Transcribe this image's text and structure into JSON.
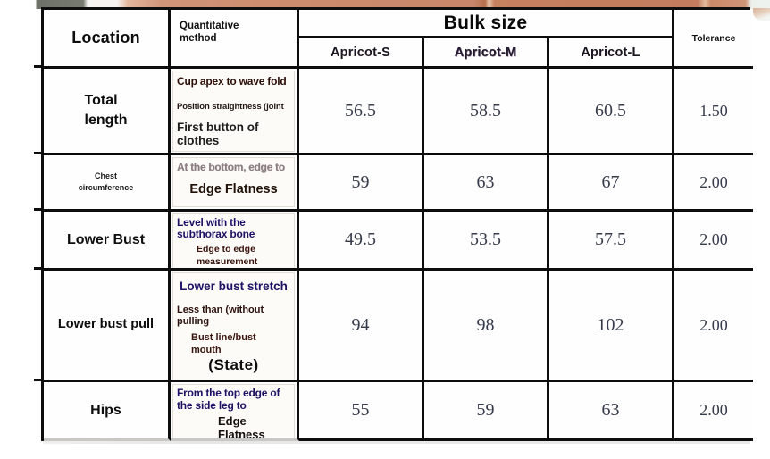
{
  "table": {
    "header": {
      "location": "Location",
      "method": "Quantitative method",
      "bulk_size": "Bulk size",
      "sizes": [
        "Apricot-S",
        "Apricot-M",
        "Apricot-L"
      ],
      "tolerance": "Tolerance"
    },
    "rows": [
      {
        "location_lines": [
          "Total",
          "length"
        ],
        "method_lines": [
          "Cup apex to wave fold",
          "Position straightness (joint",
          "First button of clothes"
        ],
        "values": [
          "56.5",
          "58.5",
          "60.5"
        ],
        "tolerance": "1.50"
      },
      {
        "location_lines": [
          "Chest",
          "circumference"
        ],
        "method_lines": [
          "At the bottom, edge to",
          "Edge Flatness"
        ],
        "values": [
          "59",
          "63",
          "67"
        ],
        "tolerance": "2.00"
      },
      {
        "location": "Lower Bust",
        "method_lines": [
          "Level with the subthorax bone",
          "Edge to edge measurement"
        ],
        "values": [
          "49.5",
          "53.5",
          "57.5"
        ],
        "tolerance": "2.00"
      },
      {
        "location": "Lower bust pull",
        "method_lines": [
          "Lower bust stretch",
          "Less than (without pulling",
          "Bust line/bust mouth",
          "(State)"
        ],
        "values": [
          "94",
          "98",
          "102"
        ],
        "tolerance": "2.00"
      },
      {
        "location": "Hips",
        "method_lines": [
          "From the top edge of the side leg to",
          "Edge Flatness"
        ],
        "values": [
          "55",
          "59",
          "63"
        ],
        "tolerance": "2.00"
      }
    ]
  },
  "colors": {
    "border": "#0d0d0d",
    "navy_text": "#1d1166",
    "maroon_text": "#3a130d",
    "gray_label": "#8a7d81",
    "number_text": "#363c4b",
    "skin_tone": "#cd8d6f"
  }
}
